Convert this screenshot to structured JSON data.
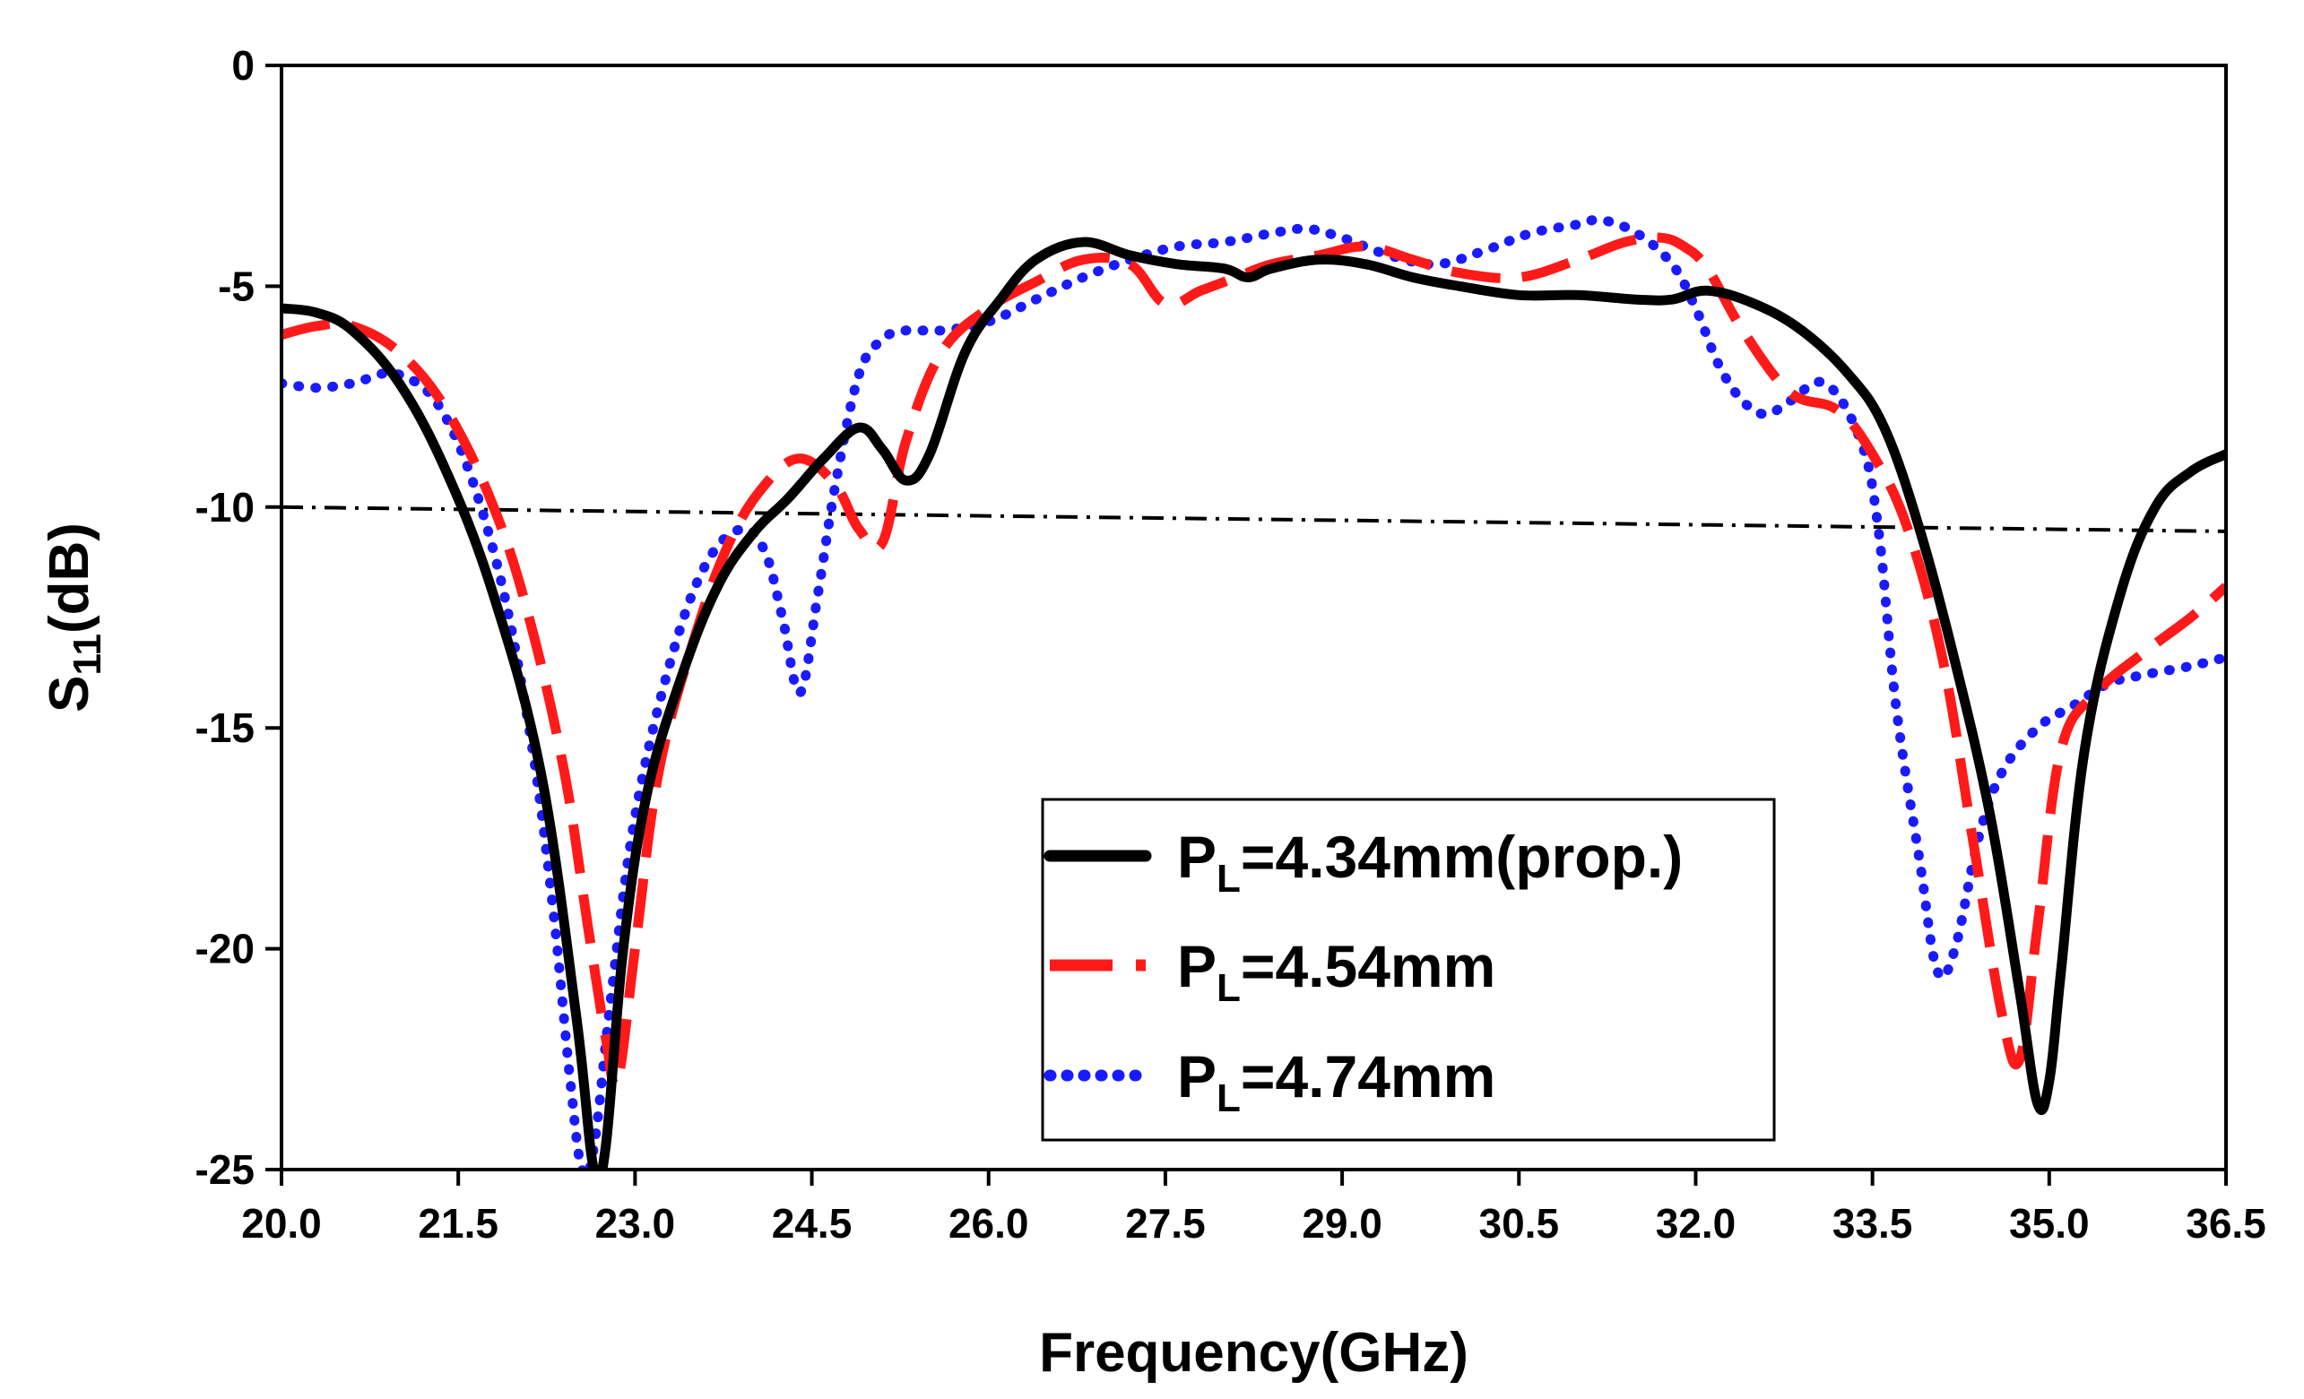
{
  "chart_data": {
    "type": "line",
    "title": "",
    "xlabel": "Frequency(GHz)",
    "ylabel": {
      "main": "S",
      "sub": "11",
      "suffix": "(dB)"
    },
    "xlim": [
      20.0,
      36.5
    ],
    "ylim": [
      -25,
      0
    ],
    "x_ticks": [
      "20.0",
      "21.5",
      "23.0",
      "24.5",
      "26.0",
      "27.5",
      "29.0",
      "30.5",
      "32.0",
      "33.5",
      "35.0",
      "36.5"
    ],
    "y_ticks": [
      "0",
      "-5",
      "-10",
      "-15",
      "-20",
      "-25"
    ],
    "grid": false,
    "legend_position": "bottom-center",
    "reference_line": {
      "name": "-10 dB reference",
      "x": [
        20.0,
        36.5
      ],
      "y": [
        -10.0,
        -10.55
      ],
      "style": "dash-dot",
      "color": "#000000"
    },
    "series": [
      {
        "name": "P_L=4.34mm(prop.)",
        "legend": {
          "main": "P",
          "sub": "L",
          "rest": "=4.34mm(prop.)"
        },
        "color": "#000000",
        "style": "solid",
        "x": [
          20.0,
          20.3,
          20.6,
          21.0,
          21.4,
          21.8,
          22.2,
          22.5,
          22.65,
          22.75,
          22.9,
          23.1,
          23.4,
          23.7,
          24.0,
          24.3,
          24.6,
          24.9,
          25.1,
          25.3,
          25.5,
          25.8,
          26.1,
          26.4,
          26.8,
          27.2,
          27.6,
          28.0,
          28.2,
          28.4,
          28.8,
          29.2,
          29.6,
          30.0,
          30.5,
          31.0,
          31.5,
          31.8,
          32.1,
          32.5,
          32.9,
          33.3,
          33.6,
          33.9,
          34.2,
          34.5,
          34.75,
          34.9,
          35.0,
          35.1,
          35.3,
          35.6,
          35.9,
          36.2,
          36.5
        ],
        "y": [
          -5.5,
          -5.6,
          -6.0,
          -7.2,
          -9.2,
          -12.0,
          -16.0,
          -21.5,
          -25.0,
          -24.5,
          -20.0,
          -16.5,
          -13.8,
          -11.8,
          -10.6,
          -9.8,
          -8.9,
          -8.2,
          -8.7,
          -9.4,
          -8.8,
          -6.5,
          -5.3,
          -4.4,
          -4.0,
          -4.3,
          -4.5,
          -4.6,
          -4.8,
          -4.6,
          -4.4,
          -4.5,
          -4.8,
          -5.0,
          -5.2,
          -5.2,
          -5.3,
          -5.3,
          -5.1,
          -5.4,
          -6.0,
          -7.0,
          -8.2,
          -10.5,
          -13.5,
          -17.0,
          -21.0,
          -23.5,
          -23.0,
          -20.5,
          -15.5,
          -12.0,
          -10.0,
          -9.2,
          -8.8
        ]
      },
      {
        "name": "P_L=4.54mm",
        "legend": {
          "main": "P",
          "sub": "L",
          "rest": "=4.54mm"
        },
        "color": "#ff1a1a",
        "style": "dashed",
        "x": [
          20.0,
          20.3,
          20.6,
          21.0,
          21.4,
          21.8,
          22.1,
          22.4,
          22.6,
          22.75,
          22.85,
          23.0,
          23.2,
          23.5,
          23.8,
          24.1,
          24.4,
          24.7,
          24.9,
          25.1,
          25.3,
          25.6,
          26.0,
          26.4,
          26.8,
          27.2,
          27.5,
          27.8,
          28.1,
          28.4,
          28.8,
          29.2,
          29.6,
          30.0,
          30.5,
          31.0,
          31.4,
          31.7,
          31.9,
          32.1,
          32.4,
          32.8,
          33.2,
          33.5,
          33.8,
          34.1,
          34.35,
          34.6,
          34.75,
          34.9,
          35.1,
          35.4,
          35.8,
          36.2,
          36.5
        ],
        "y": [
          -6.1,
          -5.9,
          -5.9,
          -6.5,
          -7.8,
          -10.0,
          -12.5,
          -16.0,
          -19.5,
          -22.0,
          -23.0,
          -20.0,
          -16.0,
          -13.0,
          -10.8,
          -9.5,
          -8.9,
          -9.5,
          -10.5,
          -10.8,
          -8.5,
          -6.5,
          -5.5,
          -4.9,
          -4.4,
          -4.5,
          -5.4,
          -5.1,
          -4.8,
          -4.5,
          -4.3,
          -4.1,
          -4.4,
          -4.7,
          -4.8,
          -4.4,
          -4.0,
          -3.9,
          -4.1,
          -4.6,
          -6.0,
          -7.4,
          -7.8,
          -8.8,
          -10.5,
          -13.5,
          -17.5,
          -21.5,
          -22.5,
          -19.5,
          -15.5,
          -14.2,
          -13.3,
          -12.5,
          -11.8
        ]
      },
      {
        "name": "P_L=4.74mm",
        "legend": {
          "main": "P",
          "sub": "L",
          "rest": "=4.74mm"
        },
        "color": "#1a1aff",
        "style": "dotted",
        "x": [
          20.0,
          20.3,
          20.6,
          21.0,
          21.4,
          21.8,
          22.1,
          22.3,
          22.45,
          22.55,
          22.65,
          22.8,
          23.0,
          23.3,
          23.6,
          23.9,
          24.1,
          24.25,
          24.4,
          24.55,
          24.7,
          24.9,
          25.1,
          25.3,
          25.6,
          26.0,
          26.4,
          26.8,
          27.2,
          27.6,
          28.0,
          28.4,
          28.7,
          29.0,
          29.4,
          29.8,
          30.2,
          30.6,
          31.0,
          31.2,
          31.5,
          31.8,
          32.0,
          32.2,
          32.4,
          32.6,
          32.8,
          33.1,
          33.4,
          33.55,
          33.7,
          33.9,
          34.05,
          34.2,
          34.4,
          34.6,
          34.9,
          35.2,
          35.5,
          35.8,
          36.2,
          36.5
        ],
        "y": [
          -7.2,
          -7.3,
          -7.2,
          -7.0,
          -8.0,
          -11.0,
          -15.0,
          -19.0,
          -23.0,
          -25.0,
          -24.5,
          -21.0,
          -17.0,
          -13.5,
          -11.3,
          -10.5,
          -11.0,
          -12.5,
          -14.2,
          -12.0,
          -9.5,
          -7.0,
          -6.2,
          -6.0,
          -6.0,
          -5.8,
          -5.3,
          -4.8,
          -4.4,
          -4.1,
          -4.0,
          -3.8,
          -3.7,
          -3.9,
          -4.3,
          -4.5,
          -4.2,
          -3.8,
          -3.6,
          -3.5,
          -3.8,
          -4.5,
          -5.5,
          -6.8,
          -7.6,
          -7.9,
          -7.6,
          -7.2,
          -8.5,
          -10.5,
          -14.5,
          -18.0,
          -20.5,
          -20.0,
          -17.5,
          -16.0,
          -15.0,
          -14.5,
          -14.0,
          -13.8,
          -13.6,
          -13.4
        ]
      }
    ]
  }
}
